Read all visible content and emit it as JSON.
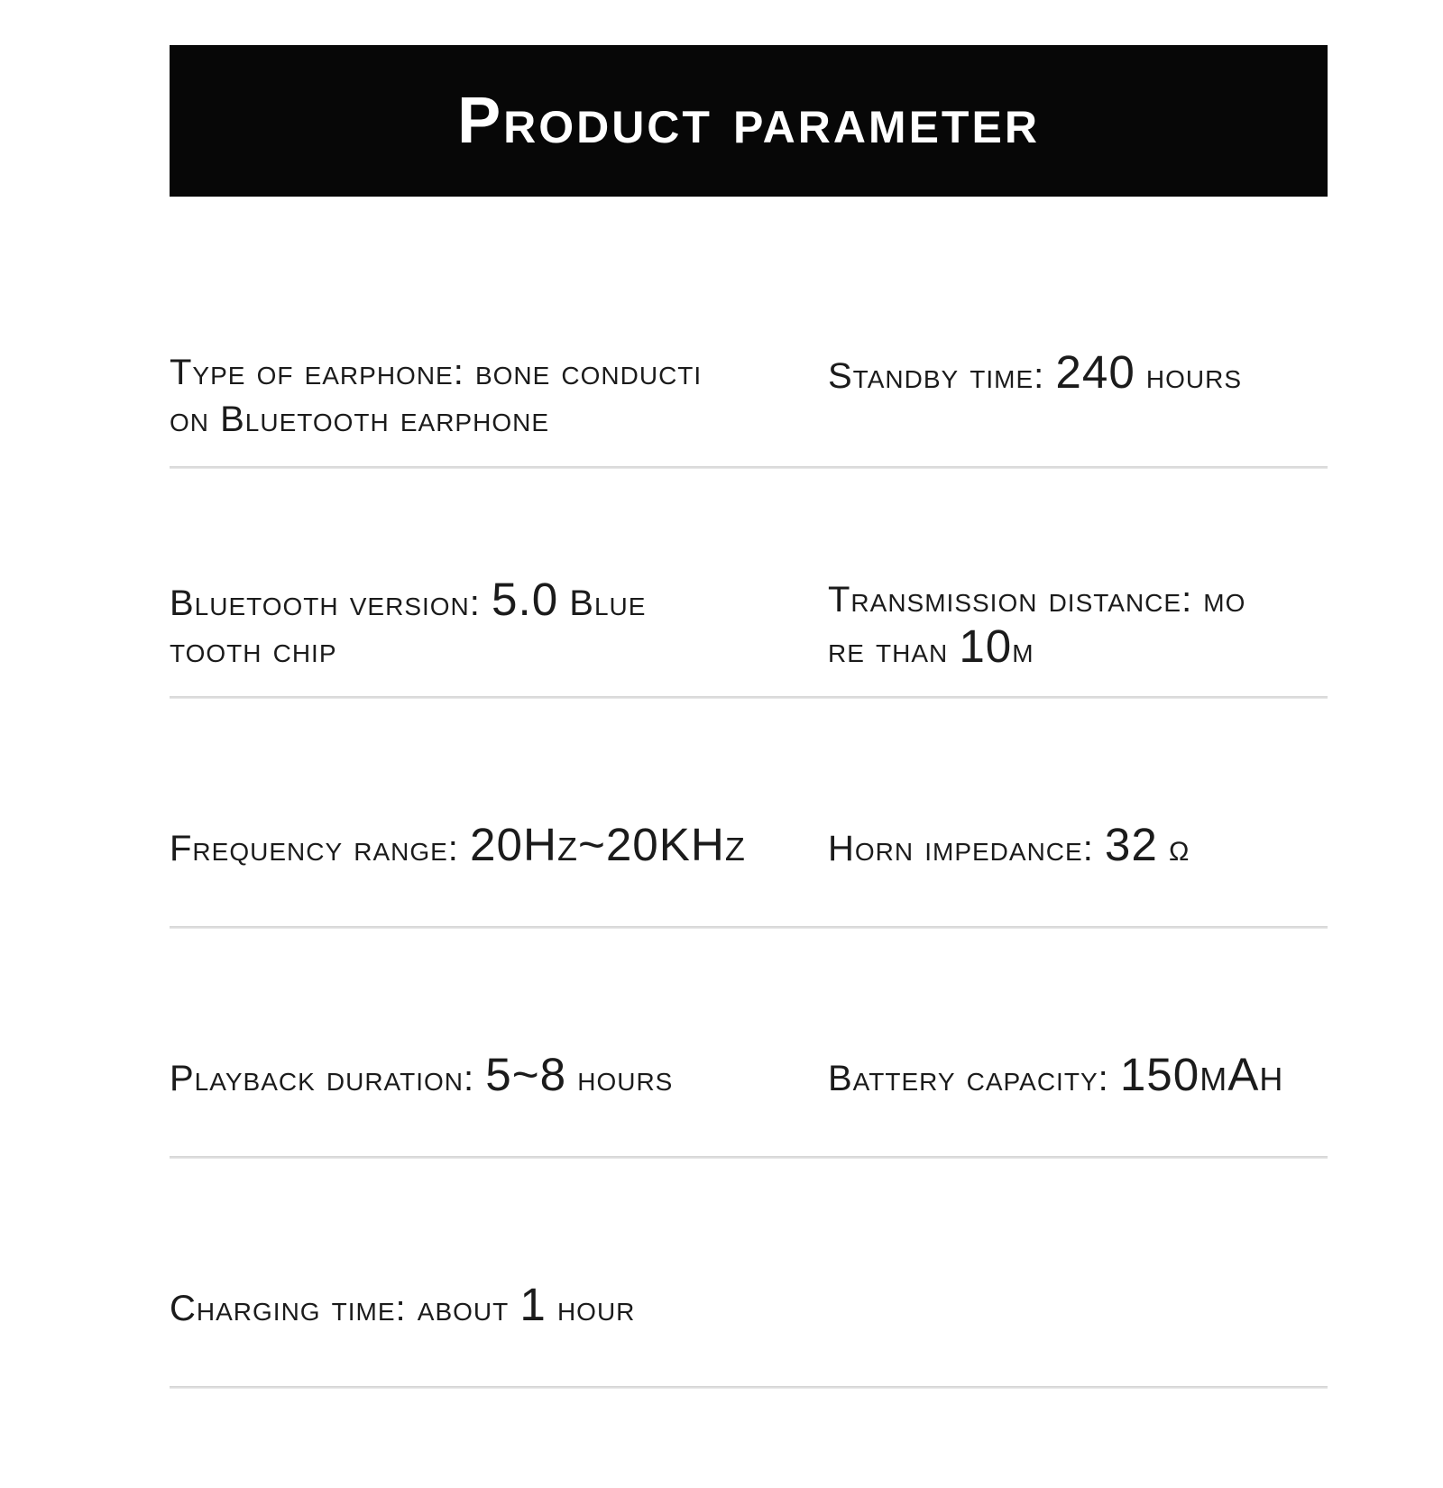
{
  "header": {
    "title": "Product parameter",
    "bar_color": "#070707",
    "title_color": "#ffffff"
  },
  "specs": {
    "text_color": "#1b1b1b",
    "divider_color": "#d7d7d7",
    "rows": [
      {
        "left": {
          "name": "earphone-type",
          "lines": [
            [
              {
                "t": "Type of earphone: bone conducti"
              }
            ],
            [
              {
                "t": "on Bluetooth earphone"
              }
            ]
          ]
        },
        "right": {
          "name": "standby-time",
          "lines": [
            [
              {
                "t": "Standby time: "
              },
              {
                "t": "240",
                "size": "big"
              },
              {
                "t": " hours"
              }
            ]
          ]
        }
      },
      {
        "left": {
          "name": "bluetooth-version",
          "lines": [
            [
              {
                "t": "Bluetooth version: "
              },
              {
                "t": "5.0",
                "size": "big"
              },
              {
                "t": " Blue"
              }
            ],
            [
              {
                "t": "tooth chip"
              }
            ]
          ]
        },
        "right": {
          "name": "transmission-distance",
          "lines": [
            [
              {
                "t": "Transmission distance: mo"
              }
            ],
            [
              {
                "t": "re than "
              },
              {
                "t": "10",
                "size": "big"
              },
              {
                "t": "m"
              }
            ]
          ]
        }
      },
      {
        "left": {
          "name": "frequency-range",
          "lines": [
            [
              {
                "t": "Frequency range: "
              },
              {
                "t": "20Hz~20KHz",
                "size": "big"
              }
            ]
          ]
        },
        "right": {
          "name": "horn-impedance",
          "lines": [
            [
              {
                "t": "Horn impedance: "
              },
              {
                "t": "32",
                "size": "big"
              },
              {
                "t": " "
              },
              {
                "t": "Ω",
                "size": "small"
              }
            ]
          ]
        }
      },
      {
        "left": {
          "name": "playback-duration",
          "lines": [
            [
              {
                "t": "Playback duration: "
              },
              {
                "t": "5~8",
                "size": "big"
              },
              {
                "t": " hours"
              }
            ]
          ]
        },
        "right": {
          "name": "battery-capacity",
          "lines": [
            [
              {
                "t": "Battery capacity: "
              },
              {
                "t": "150mAh",
                "size": "big"
              }
            ]
          ]
        }
      },
      {
        "left": {
          "name": "charging-time",
          "lines": [
            [
              {
                "t": "Charging time: about "
              },
              {
                "t": "1",
                "size": "big"
              },
              {
                "t": " hour"
              }
            ]
          ]
        },
        "right": null
      }
    ]
  }
}
